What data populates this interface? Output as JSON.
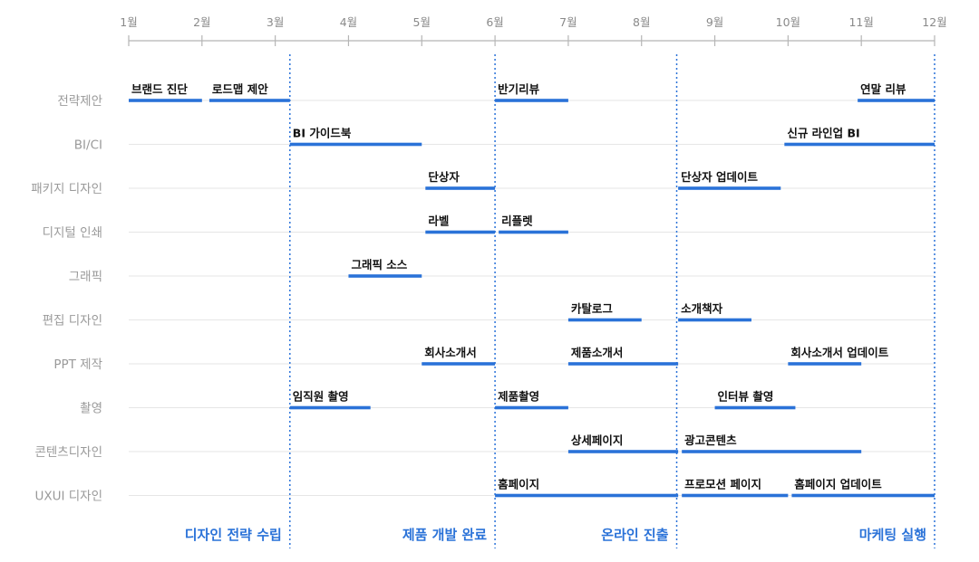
{
  "months": [
    "1월",
    "2월",
    "3월",
    "4월",
    "5월",
    "6월",
    "7월",
    "8월",
    "9월",
    "10월",
    "11월",
    "12월"
  ],
  "rows": [
    "전략제안",
    "BI/CI",
    "패키지 디자인",
    "디지털 인쇄",
    "그래픽",
    "편집 디자인",
    "PPT 제작",
    "촬영",
    "콘텐츠디자인",
    "UXUI 디자인"
  ],
  "tasks": [
    {
      "row": 0,
      "label": "브랜드 진단",
      "start": 1.0,
      "end": 2.0
    },
    {
      "row": 0,
      "label": "로드맵 제안",
      "start": 2.1,
      "end": 3.2
    },
    {
      "row": 0,
      "label": "반기리뷰",
      "start": 6.0,
      "end": 7.0
    },
    {
      "row": 0,
      "label": "연말 리뷰",
      "start": 10.95,
      "end": 12.0
    },
    {
      "row": 1,
      "label": "BI 가이드북",
      "start": 3.2,
      "end": 5.0
    },
    {
      "row": 1,
      "label": "신규 라인업 BI",
      "start": 9.95,
      "end": 12.0
    },
    {
      "row": 2,
      "label": "단상자",
      "start": 5.05,
      "end": 6.0
    },
    {
      "row": 2,
      "label": "단상자 업데이트",
      "start": 8.5,
      "end": 9.9
    },
    {
      "row": 3,
      "label": "라벨",
      "start": 5.05,
      "end": 6.0
    },
    {
      "row": 3,
      "label": "리플렛",
      "start": 6.05,
      "end": 7.0
    },
    {
      "row": 4,
      "label": "그래픽 소스",
      "start": 4.0,
      "end": 5.0
    },
    {
      "row": 5,
      "label": "카탈로그",
      "start": 7.0,
      "end": 8.0
    },
    {
      "row": 5,
      "label": "소개책자",
      "start": 8.5,
      "end": 9.5
    },
    {
      "row": 6,
      "label": "회사소개서",
      "start": 5.0,
      "end": 6.0
    },
    {
      "row": 6,
      "label": "제품소개서",
      "start": 7.0,
      "end": 8.5
    },
    {
      "row": 6,
      "label": "회사소개서 업데이트",
      "start": 10.0,
      "end": 11.0
    },
    {
      "row": 7,
      "label": "임직원 촬영",
      "start": 3.2,
      "end": 4.3
    },
    {
      "row": 7,
      "label": "제품촬영",
      "start": 6.0,
      "end": 7.0
    },
    {
      "row": 7,
      "label": "인터뷰 촬영",
      "start": 9.0,
      "end": 10.1
    },
    {
      "row": 8,
      "label": "상세페이지",
      "start": 7.0,
      "end": 8.5
    },
    {
      "row": 8,
      "label": "광고콘텐츠",
      "start": 8.55,
      "end": 11.0
    },
    {
      "row": 9,
      "label": "홈페이지",
      "start": 6.0,
      "end": 8.5
    },
    {
      "row": 9,
      "label": "프로모션 페이지",
      "start": 8.55,
      "end": 10.0
    },
    {
      "row": 9,
      "label": "홈페이지 업데이트",
      "start": 10.05,
      "end": 12.0
    }
  ],
  "phase_boundaries": [
    3.2,
    6.0,
    8.48,
    12.0
  ],
  "phases": [
    "디자인 전략 수립",
    "제품 개발 완료",
    "온라인 진출",
    "마케팅 실행"
  ],
  "colors": {
    "bar": "#2a72d8",
    "axis": "#b5b5b5",
    "gridline": "#e6e6e6",
    "phase": "#2a72d8"
  }
}
